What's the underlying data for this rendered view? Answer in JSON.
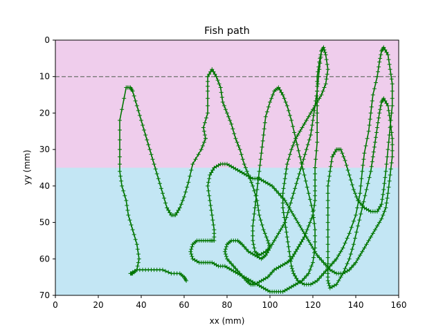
{
  "chart_data": {
    "type": "line",
    "title": "Fish path",
    "xlabel": "xx (mm)",
    "ylabel": "yy (mm)",
    "xlim": [
      0,
      160
    ],
    "ylim": [
      70,
      0
    ],
    "y_inverted": true,
    "xticks": [
      "0",
      "20",
      "40",
      "60",
      "80",
      "100",
      "120",
      "140",
      "160"
    ],
    "yticks": [
      "0",
      "10",
      "20",
      "30",
      "40",
      "50",
      "60",
      "70"
    ],
    "grid": false,
    "background_bands": [
      {
        "y_from": 0,
        "y_to": 35,
        "color": "#efcdec"
      },
      {
        "y_from": 35,
        "y_to": 70,
        "color": "#c3e6f4"
      }
    ],
    "reference_line": {
      "y": 10,
      "style": "dashed",
      "color": "#808080"
    },
    "series": [
      {
        "color": "#007500",
        "marker": "+",
        "points": [
          [
            70,
            27
          ],
          [
            69,
            24
          ],
          [
            71,
            20
          ],
          [
            71,
            14
          ],
          [
            71,
            10
          ],
          [
            73,
            8
          ],
          [
            75,
            10
          ],
          [
            77,
            13
          ],
          [
            78,
            17
          ],
          [
            80,
            20
          ],
          [
            82,
            23
          ],
          [
            84,
            27
          ],
          [
            86,
            30
          ],
          [
            88,
            34
          ],
          [
            90,
            37
          ],
          [
            92,
            40
          ],
          [
            94,
            44
          ],
          [
            95,
            48
          ],
          [
            97,
            52
          ],
          [
            99,
            55
          ],
          [
            100,
            57
          ],
          [
            98,
            59
          ],
          [
            96,
            60
          ],
          [
            93,
            59
          ],
          [
            90,
            58
          ],
          [
            87,
            56
          ],
          [
            85,
            55
          ],
          [
            82,
            55
          ],
          [
            80,
            56
          ],
          [
            79,
            58
          ],
          [
            80,
            60
          ],
          [
            83,
            62
          ],
          [
            86,
            64
          ],
          [
            89,
            66
          ],
          [
            91,
            67
          ],
          [
            93,
            67
          ],
          [
            96,
            66
          ],
          [
            99,
            65
          ],
          [
            102,
            63
          ],
          [
            105,
            62
          ],
          [
            108,
            61
          ],
          [
            110,
            60
          ],
          [
            112,
            58
          ],
          [
            114,
            56
          ],
          [
            116,
            54
          ],
          [
            118,
            51
          ],
          [
            120,
            48
          ],
          [
            121,
            44
          ],
          [
            121,
            40
          ],
          [
            121,
            35
          ],
          [
            122,
            28
          ],
          [
            122,
            20
          ],
          [
            122,
            14
          ],
          [
            123,
            8
          ],
          [
            124,
            3
          ],
          [
            125,
            2
          ],
          [
            126,
            4
          ],
          [
            127,
            8
          ],
          [
            126,
            12
          ],
          [
            124,
            15
          ],
          [
            121,
            18
          ],
          [
            118,
            21
          ],
          [
            115,
            24
          ],
          [
            112,
            27
          ],
          [
            110,
            30
          ],
          [
            108,
            34
          ],
          [
            107,
            38
          ],
          [
            106,
            42
          ],
          [
            106,
            46
          ],
          [
            107,
            50
          ],
          [
            108,
            54
          ],
          [
            109,
            58
          ],
          [
            110,
            62
          ],
          [
            111,
            64
          ],
          [
            113,
            66
          ],
          [
            116,
            67
          ],
          [
            119,
            67
          ],
          [
            122,
            66
          ],
          [
            125,
            64
          ],
          [
            128,
            62
          ],
          [
            131,
            60
          ],
          [
            134,
            57
          ],
          [
            137,
            53
          ],
          [
            140,
            48
          ],
          [
            142,
            42
          ],
          [
            143,
            36
          ],
          [
            144,
            31
          ],
          [
            146,
            25
          ],
          [
            147,
            20
          ],
          [
            148,
            15
          ],
          [
            150,
            10
          ],
          [
            151,
            6
          ],
          [
            152,
            3
          ],
          [
            153,
            2
          ],
          [
            155,
            4
          ],
          [
            156,
            8
          ],
          [
            157,
            12
          ],
          [
            157,
            18
          ],
          [
            156,
            24
          ],
          [
            155,
            30
          ],
          [
            154,
            36
          ],
          [
            153,
            41
          ],
          [
            152,
            45
          ],
          [
            150,
            47
          ],
          [
            147,
            47
          ],
          [
            144,
            46
          ],
          [
            141,
            44
          ],
          [
            139,
            41
          ],
          [
            137,
            37
          ],
          [
            135,
            33
          ],
          [
            133,
            30
          ],
          [
            131,
            30
          ],
          [
            129,
            32
          ],
          [
            128,
            36
          ],
          [
            127,
            40
          ],
          [
            127,
            46
          ],
          [
            127,
            52
          ],
          [
            127,
            58
          ],
          [
            127,
            63
          ],
          [
            127,
            66
          ],
          [
            128,
            68
          ],
          [
            131,
            67
          ],
          [
            134,
            64
          ],
          [
            137,
            60
          ],
          [
            139,
            56
          ],
          [
            141,
            51
          ],
          [
            143,
            46
          ],
          [
            145,
            41
          ],
          [
            147,
            36
          ],
          [
            148,
            32
          ],
          [
            149,
            28
          ],
          [
            150,
            24
          ],
          [
            151,
            20
          ],
          [
            152,
            17
          ],
          [
            153,
            16
          ],
          [
            155,
            18
          ],
          [
            156,
            22
          ],
          [
            157,
            27
          ],
          [
            157,
            32
          ],
          [
            156,
            37
          ],
          [
            155,
            42
          ],
          [
            154,
            46
          ],
          [
            152,
            49
          ],
          [
            149,
            52
          ],
          [
            146,
            55
          ],
          [
            143,
            58
          ],
          [
            140,
            61
          ],
          [
            137,
            63
          ],
          [
            134,
            64
          ],
          [
            131,
            64
          ],
          [
            128,
            63
          ],
          [
            125,
            61
          ],
          [
            122,
            59
          ],
          [
            119,
            56
          ],
          [
            116,
            53
          ],
          [
            113,
            50
          ],
          [
            110,
            47
          ],
          [
            107,
            44
          ],
          [
            104,
            42
          ],
          [
            101,
            40
          ],
          [
            98,
            39
          ],
          [
            95,
            38
          ],
          [
            92,
            38
          ],
          [
            89,
            37
          ],
          [
            86,
            36
          ],
          [
            83,
            35
          ],
          [
            80,
            34
          ],
          [
            77,
            34
          ],
          [
            74,
            35
          ],
          [
            72,
            37
          ],
          [
            71,
            40
          ],
          [
            72,
            44
          ],
          [
            73,
            48
          ],
          [
            74,
            52
          ],
          [
            74,
            55
          ],
          [
            72,
            55
          ],
          [
            69,
            55
          ],
          [
            66,
            55
          ],
          [
            64,
            56
          ],
          [
            63,
            58
          ],
          [
            64,
            60
          ],
          [
            67,
            61
          ],
          [
            70,
            61
          ],
          [
            73,
            61
          ],
          [
            76,
            62
          ],
          [
            79,
            62
          ],
          [
            82,
            63
          ],
          [
            85,
            64
          ],
          [
            88,
            65
          ],
          [
            91,
            66
          ],
          [
            94,
            67
          ],
          [
            97,
            68
          ],
          [
            100,
            69
          ],
          [
            103,
            69
          ],
          [
            106,
            69
          ],
          [
            109,
            68
          ],
          [
            112,
            67
          ],
          [
            115,
            66
          ],
          [
            118,
            64
          ],
          [
            120,
            61
          ],
          [
            121,
            57
          ],
          [
            121,
            52
          ],
          [
            120,
            47
          ],
          [
            118,
            42
          ],
          [
            116,
            37
          ],
          [
            114,
            32
          ],
          [
            112,
            27
          ],
          [
            110,
            22
          ],
          [
            108,
            18
          ],
          [
            106,
            15
          ],
          [
            104,
            13
          ],
          [
            102,
            14
          ],
          [
            100,
            17
          ],
          [
            98,
            21
          ],
          [
            97,
            26
          ],
          [
            96,
            31
          ],
          [
            95,
            36
          ],
          [
            94,
            41
          ],
          [
            93,
            46
          ],
          [
            92,
            51
          ],
          [
            92,
            55
          ],
          [
            93,
            58
          ],
          [
            95,
            59
          ],
          [
            98,
            58
          ],
          [
            101,
            56
          ],
          [
            104,
            53
          ],
          [
            107,
            50
          ],
          [
            109,
            46
          ],
          [
            111,
            42
          ],
          [
            113,
            38
          ],
          [
            115,
            34
          ],
          [
            117,
            30
          ],
          [
            119,
            26
          ],
          [
            120,
            22
          ],
          [
            121,
            18
          ],
          [
            122,
            14
          ],
          [
            122,
            10
          ],
          [
            123,
            6
          ],
          [
            124,
            3
          ]
        ]
      },
      {
        "color": "#007500",
        "marker": "+",
        "points": [
          [
            70,
            27
          ],
          [
            68,
            30
          ],
          [
            64,
            34
          ],
          [
            62,
            39
          ],
          [
            60,
            43
          ],
          [
            58,
            46
          ],
          [
            56,
            48
          ],
          [
            54,
            48
          ],
          [
            52,
            46
          ],
          [
            50,
            42
          ],
          [
            48,
            38
          ],
          [
            46,
            34
          ],
          [
            44,
            30
          ],
          [
            42,
            26
          ],
          [
            40,
            22
          ],
          [
            38,
            18
          ],
          [
            36,
            14
          ],
          [
            35,
            13
          ],
          [
            33,
            13
          ],
          [
            30,
            22
          ],
          [
            30,
            30
          ],
          [
            30,
            36
          ],
          [
            31,
            40
          ],
          [
            33,
            44
          ],
          [
            34,
            48
          ],
          [
            36,
            52
          ],
          [
            38,
            56
          ],
          [
            39,
            60
          ],
          [
            38,
            63
          ],
          [
            36,
            64
          ],
          [
            35,
            64
          ],
          [
            38,
            63
          ],
          [
            42,
            63
          ],
          [
            46,
            63
          ],
          [
            50,
            63
          ],
          [
            54,
            64
          ],
          [
            58,
            64
          ],
          [
            60,
            65
          ],
          [
            61,
            66
          ]
        ]
      }
    ]
  }
}
